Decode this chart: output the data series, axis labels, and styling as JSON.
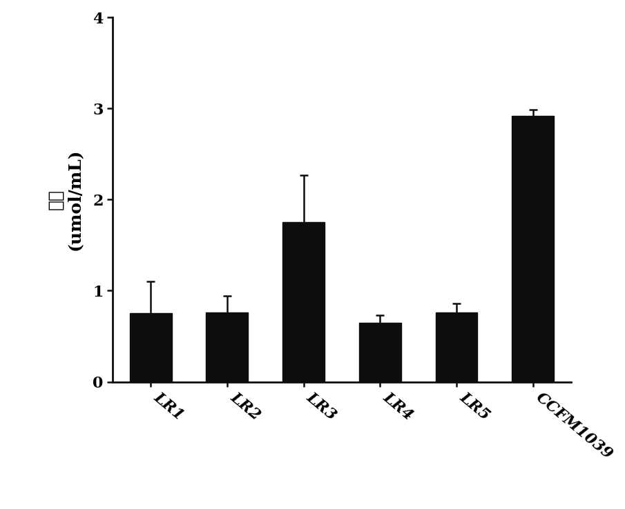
{
  "categories": [
    "LR1",
    "LR2",
    "LR3",
    "LR4",
    "LR5",
    "CCFM1039"
  ],
  "values": [
    0.75,
    0.76,
    1.75,
    0.65,
    0.76,
    2.92
  ],
  "errors": [
    0.35,
    0.18,
    0.52,
    0.08,
    0.1,
    0.07
  ],
  "bar_color": "#0d0d0d",
  "error_color": "#0d0d0d",
  "ylabel_chinese": "产量",
  "ylabel_english": "(umol/mL)",
  "ylim": [
    0,
    4
  ],
  "yticks": [
    0,
    1,
    2,
    3,
    4
  ],
  "bar_width": 0.55,
  "background_color": "#ffffff",
  "spine_color": "#0d0d0d",
  "tick_labelsize": 16,
  "ylabel_fontsize": 18,
  "capsize": 4,
  "error_linewidth": 1.8,
  "spine_linewidth": 2.0,
  "rotation": -40,
  "ha": "left"
}
